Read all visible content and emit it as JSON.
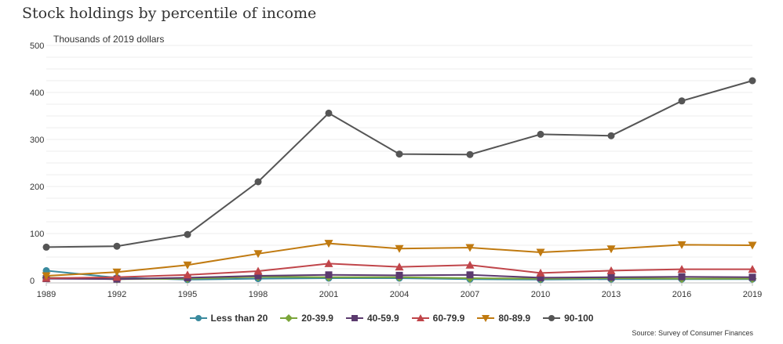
{
  "chart_data": {
    "type": "line",
    "title": "Stock holdings by percentile of income",
    "ylabel": "Thousands of 2019 dollars",
    "xlabel": "",
    "ylim": [
      0,
      500
    ],
    "y_ticks": [
      "0",
      "100",
      "200",
      "300",
      "400",
      "500"
    ],
    "categories": [
      "1989",
      "1992",
      "1995",
      "1998",
      "2001",
      "2004",
      "2007",
      "2010",
      "2013",
      "2016",
      "2019"
    ],
    "grid": true,
    "legend_position": "bottom",
    "source": "Source: Survey of Consumer Finances",
    "series": [
      {
        "name": "Less than 20",
        "color": "#3a8a9e",
        "marker": "circle",
        "values": [
          21,
          6,
          2,
          4,
          5,
          5,
          3,
          2,
          3,
          3,
          3
        ]
      },
      {
        "name": "20-39.9",
        "color": "#7ba53a",
        "marker": "diamond",
        "values": [
          6,
          3,
          4,
          8,
          7,
          7,
          5,
          4,
          5,
          4,
          4
        ]
      },
      {
        "name": "40-59.9",
        "color": "#5b3a6e",
        "marker": "square",
        "values": [
          4,
          3,
          6,
          10,
          12,
          11,
          12,
          6,
          7,
          8,
          7
        ]
      },
      {
        "name": "60-79.9",
        "color": "#c0454a",
        "marker": "triangle",
        "values": [
          5,
          7,
          12,
          20,
          36,
          29,
          33,
          16,
          21,
          24,
          24
        ]
      },
      {
        "name": "80-89.9",
        "color": "#c07a10",
        "marker": "triangle-down",
        "values": [
          10,
          18,
          33,
          57,
          79,
          68,
          70,
          60,
          67,
          76,
          75
        ]
      },
      {
        "name": "90-100",
        "color": "#555555",
        "marker": "circle",
        "values": [
          71,
          73,
          98,
          210,
          356,
          269,
          268,
          311,
          308,
          382,
          425
        ]
      }
    ]
  }
}
